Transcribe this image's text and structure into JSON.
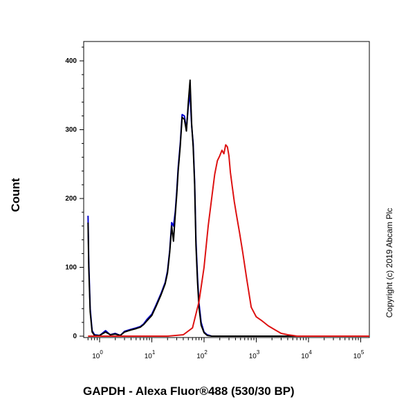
{
  "chart_data": {
    "type": "line",
    "title": "",
    "xlabel": "GAPDH - Alexa Fluor®488 (530/30 BP)",
    "ylabel": "Count",
    "x_scale": "log",
    "xlim": [
      0.6,
      250000
    ],
    "ylim": [
      0,
      430
    ],
    "yticks": [
      0,
      100,
      200,
      300,
      400
    ],
    "ytick_labels": [
      "0",
      "100",
      "200",
      "300",
      "400"
    ],
    "xticks": [
      1,
      10,
      100,
      1000,
      10000,
      100000
    ],
    "xtick_bases": [
      "10",
      "10",
      "10",
      "10",
      "10",
      "10"
    ],
    "xtick_exponents": [
      "0",
      "1",
      "2",
      "3",
      "4",
      "5"
    ],
    "grid": false,
    "legend": null,
    "series": [
      {
        "color": "#0000cc",
        "x": [
          0.6,
          0.62,
          0.66,
          0.72,
          0.8,
          1,
          1.3,
          1.6,
          2,
          2.5,
          3,
          4,
          5,
          6,
          7,
          8,
          10,
          12,
          15,
          18,
          20,
          22,
          24,
          26,
          28,
          30,
          32,
          35,
          38,
          42,
          46,
          50,
          54,
          58,
          62,
          66,
          70,
          75,
          80,
          88,
          100,
          115,
          140,
          180,
          240,
          400,
          1000,
          250000
        ],
        "y": [
          175,
          110,
          40,
          8,
          2,
          1,
          8,
          2,
          4,
          1,
          7,
          10,
          12,
          14,
          18,
          24,
          32,
          45,
          62,
          78,
          95,
          125,
          165,
          160,
          180,
          210,
          245,
          280,
          322,
          320,
          300,
          335,
          352,
          305,
          280,
          225,
          140,
          85,
          48,
          20,
          6,
          2,
          0,
          0,
          0,
          0,
          0,
          0
        ]
      },
      {
        "color": "#000000",
        "x": [
          0.6,
          0.62,
          0.66,
          0.72,
          0.8,
          1,
          1.3,
          1.6,
          2,
          2.5,
          3,
          4,
          5,
          6,
          7,
          8,
          10,
          12,
          15,
          18,
          20,
          22,
          24,
          26,
          28,
          30,
          32,
          35,
          38,
          42,
          46,
          50,
          54,
          58,
          62,
          66,
          70,
          75,
          80,
          88,
          100,
          115,
          140,
          180,
          240,
          400,
          1000,
          250000
        ],
        "y": [
          165,
          100,
          35,
          6,
          1,
          1,
          6,
          2,
          3,
          1,
          6,
          9,
          11,
          13,
          17,
          22,
          30,
          43,
          60,
          76,
          92,
          122,
          160,
          138,
          175,
          205,
          240,
          276,
          318,
          315,
          298,
          340,
          372,
          308,
          275,
          220,
          132,
          78,
          42,
          16,
          5,
          1,
          0,
          0,
          0,
          0,
          0,
          0
        ]
      },
      {
        "color": "#dd1111",
        "x": [
          0.6,
          20,
          40,
          60,
          80,
          100,
          120,
          140,
          160,
          180,
          200,
          220,
          240,
          260,
          280,
          300,
          320,
          350,
          380,
          420,
          480,
          550,
          650,
          800,
          1000,
          1300,
          1700,
          2300,
          3000,
          4000,
          5000,
          6000,
          250000
        ],
        "y": [
          0,
          0,
          2,
          12,
          50,
          100,
          160,
          200,
          235,
          255,
          262,
          270,
          265,
          278,
          275,
          262,
          238,
          215,
          195,
          175,
          150,
          122,
          85,
          42,
          28,
          22,
          15,
          9,
          4,
          2,
          1,
          0,
          0
        ]
      }
    ]
  },
  "copyright": "Copyright (c) 2019 Abcam Plc"
}
